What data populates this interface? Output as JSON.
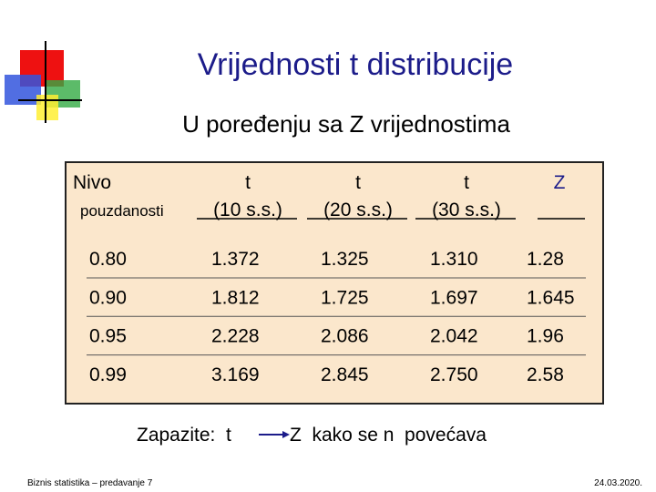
{
  "header": {
    "title": "Vrijednosti t distribucije",
    "subtitle": "U poređenju sa Z vrijednostima"
  },
  "table": {
    "columns": [
      [
        "Nivo",
        "pouzdanosti"
      ],
      [
        "t",
        "(10 s.s.)"
      ],
      [
        "t",
        "(20 s.s.)"
      ],
      [
        "t",
        "(30 s.s.)"
      ],
      [
        "Z"
      ]
    ],
    "rows": [
      [
        "0.80",
        "1.372",
        "1.325",
        "1.310",
        "1.28"
      ],
      [
        "0.90",
        "1.812",
        "1.725",
        "1.697",
        "1.645"
      ],
      [
        "0.95",
        "2.228",
        "2.086",
        "2.042",
        "1.96"
      ],
      [
        "0.99",
        "3.169",
        "2.845",
        "2.750",
        "2.58"
      ]
    ]
  },
  "note": {
    "start": "Zapazite:  t",
    "end": "Z  kako se n  povećava"
  },
  "footer": {
    "left": "Biznis statistika – predavanje 7",
    "right": "24.03.2020."
  }
}
